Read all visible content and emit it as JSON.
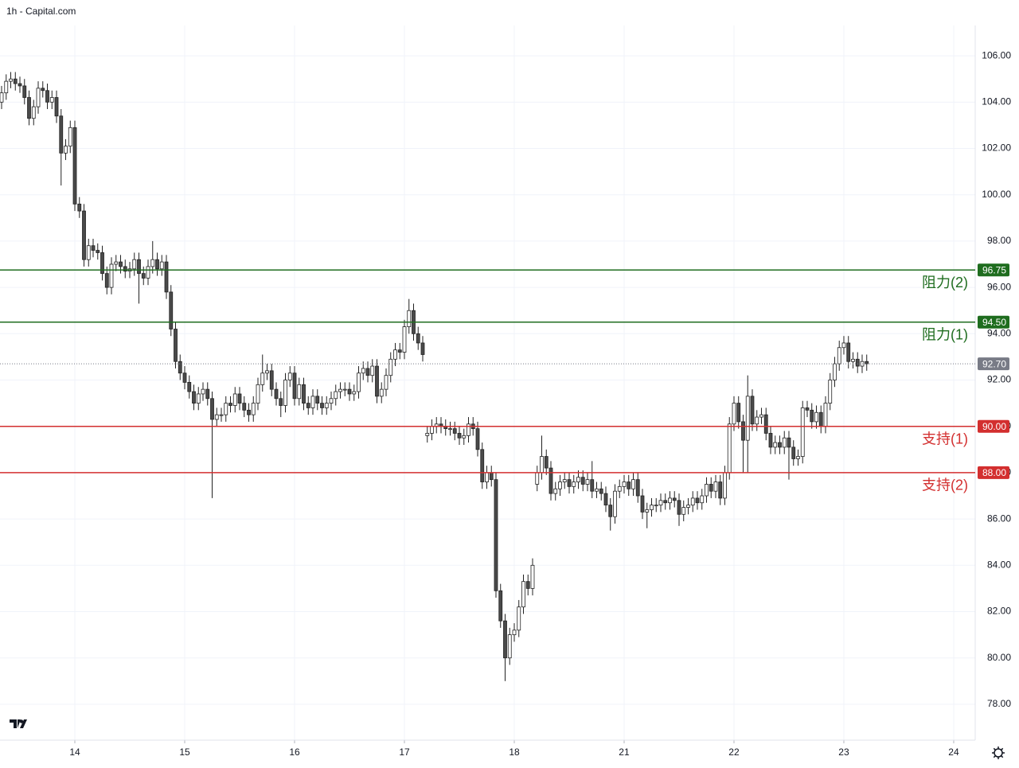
{
  "chart_data": {
    "type": "candlestick",
    "title": "1h - Capital.com",
    "x": [
      0,
      1,
      2,
      3,
      4,
      5,
      6,
      7,
      8,
      9,
      10,
      11,
      12,
      13,
      14,
      15,
      16,
      17,
      18,
      19,
      20,
      21,
      22,
      23,
      24,
      25,
      26,
      27,
      28,
      29,
      30,
      31,
      32,
      33,
      34,
      35,
      36,
      37,
      38,
      39,
      40,
      41,
      42,
      43,
      44,
      45,
      46,
      47,
      48,
      49,
      50,
      51,
      52,
      53,
      54,
      55,
      56,
      57,
      58,
      59,
      60,
      61,
      62,
      63,
      64,
      65,
      66,
      67,
      68,
      69,
      70,
      71,
      72,
      73,
      74,
      75,
      76,
      77,
      78,
      79,
      80,
      81,
      82,
      83,
      84,
      85,
      86,
      87,
      88,
      89,
      90,
      91,
      92,
      93,
      94,
      95,
      96,
      97,
      98,
      99,
      100,
      101,
      102,
      103,
      104,
      105,
      106,
      107,
      108,
      109,
      110,
      111,
      112,
      113,
      114,
      115,
      116,
      117,
      118,
      119,
      120,
      121,
      122,
      123,
      124,
      125,
      126,
      127,
      128,
      129,
      130,
      131,
      132,
      133,
      134,
      135,
      136,
      137,
      138,
      139,
      140,
      141,
      142,
      143,
      144,
      145,
      146,
      147,
      148,
      149,
      150,
      151,
      152,
      153,
      154,
      155,
      156,
      157,
      158,
      159,
      160,
      161,
      162,
      163,
      164,
      165,
      166,
      167,
      168,
      169,
      170,
      171,
      172,
      173,
      174,
      175,
      176,
      177,
      178,
      179,
      180,
      181,
      182,
      183,
      184,
      185,
      186,
      187,
      188,
      189
    ],
    "open": [
      104.0,
      104.4,
      104.9,
      105.0,
      104.8,
      104.7,
      104.2,
      103.3,
      103.8,
      104.6,
      104.5,
      104.0,
      104.2,
      103.4,
      101.8,
      102.1,
      102.9,
      99.6,
      99.3,
      97.2,
      97.8,
      97.6,
      97.5,
      96.6,
      96.0,
      97.0,
      97.1,
      96.9,
      96.7,
      96.8,
      97.2,
      96.6,
      96.4,
      96.9,
      97.2,
      96.8,
      97.1,
      95.8,
      94.2,
      92.8,
      92.3,
      91.9,
      91.5,
      91.0,
      91.4,
      91.6,
      91.2,
      90.3,
      90.5,
      90.5,
      91.0,
      90.9,
      91.4,
      91.0,
      90.7,
      90.5,
      91.0,
      91.8,
      92.3,
      92.4,
      91.6,
      91.2,
      90.9,
      92.0,
      92.3,
      91.2,
      91.8,
      91.0,
      90.8,
      91.3,
      91.0,
      90.8,
      91.0,
      91.2,
      91.5,
      91.6,
      91.6,
      91.4,
      91.5,
      92.3,
      92.5,
      92.2,
      92.6,
      91.3,
      91.6,
      92.2,
      92.9,
      93.3,
      93.2,
      94.3,
      95.0,
      94.0,
      93.6,
      89.6,
      89.7,
      90.0,
      90.1,
      90.0,
      89.9,
      89.9,
      89.7,
      89.5,
      89.6,
      90.1,
      89.9,
      89.0,
      87.6,
      88.0,
      87.7,
      82.9,
      81.6,
      80.0,
      81.0,
      81.2,
      82.2,
      83.3,
      83.0,
      87.5,
      88.0,
      88.7,
      88.2,
      87.1,
      87.3,
      87.6,
      87.7,
      87.4,
      87.6,
      87.8,
      87.5,
      87.7,
      87.2,
      87.3,
      87.1,
      86.6,
      86.1,
      87.2,
      87.4,
      87.6,
      87.3,
      87.7,
      87.0,
      86.3,
      86.4,
      86.6,
      86.6,
      86.8,
      86.7,
      86.9,
      86.8,
      86.2,
      86.5,
      86.6,
      86.9,
      86.7,
      87.0,
      87.5,
      87.2,
      87.6,
      86.9,
      88.0,
      90.1,
      91.0,
      90.2,
      89.4,
      91.3,
      90.1,
      90.4,
      90.5,
      89.7,
      89.1,
      89.3,
      89.1,
      89.5,
      89.1,
      88.6,
      88.7,
      90.8,
      90.7,
      90.2,
      90.6,
      90.0,
      91.0,
      92.0,
      92.7,
      93.4,
      93.6,
      92.8,
      92.9,
      92.6,
      92.8
    ],
    "high": [
      104.7,
      105.2,
      105.3,
      105.3,
      105.1,
      105.0,
      104.5,
      104.1,
      104.9,
      104.9,
      104.8,
      104.5,
      104.5,
      103.7,
      102.4,
      103.2,
      103.2,
      99.9,
      99.6,
      98.1,
      98.1,
      97.9,
      97.8,
      96.9,
      97.3,
      97.4,
      97.4,
      97.2,
      97.1,
      97.5,
      97.5,
      96.9,
      97.2,
      98.0,
      97.5,
      97.4,
      97.4,
      96.1,
      94.5,
      93.1,
      92.6,
      92.2,
      91.8,
      91.7,
      91.9,
      91.9,
      91.5,
      90.8,
      90.8,
      91.3,
      91.3,
      91.7,
      91.7,
      91.3,
      91.0,
      91.3,
      92.1,
      93.1,
      92.7,
      92.7,
      91.9,
      91.5,
      92.3,
      92.6,
      92.6,
      92.1,
      92.1,
      91.3,
      91.6,
      91.6,
      91.3,
      91.3,
      91.5,
      91.8,
      91.9,
      91.9,
      91.9,
      91.8,
      92.6,
      92.8,
      92.8,
      92.9,
      92.9,
      91.9,
      92.5,
      93.2,
      93.6,
      93.6,
      94.6,
      95.5,
      95.3,
      94.3,
      93.9,
      90.0,
      90.3,
      90.4,
      90.4,
      90.3,
      90.2,
      90.2,
      90.0,
      89.9,
      90.4,
      90.4,
      90.2,
      89.3,
      88.3,
      88.3,
      88.0,
      83.2,
      81.9,
      81.3,
      81.5,
      82.5,
      83.6,
      83.6,
      84.3,
      88.3,
      89.6,
      89.0,
      88.5,
      87.6,
      87.9,
      88.0,
      88.0,
      87.9,
      88.1,
      88.1,
      88.0,
      88.5,
      87.6,
      87.6,
      87.4,
      86.9,
      87.5,
      87.7,
      87.9,
      87.9,
      88.0,
      88.0,
      87.3,
      86.7,
      86.9,
      86.9,
      87.1,
      87.1,
      87.2,
      87.2,
      87.1,
      86.8,
      86.9,
      87.2,
      87.2,
      87.3,
      87.8,
      87.8,
      87.9,
      87.9,
      88.3,
      90.4,
      91.3,
      91.3,
      90.5,
      92.2,
      91.6,
      90.7,
      90.8,
      90.8,
      90.0,
      89.6,
      89.6,
      89.8,
      89.8,
      89.4,
      89.0,
      91.1,
      91.1,
      91.0,
      90.9,
      90.9,
      91.3,
      92.3,
      93.0,
      93.7,
      93.9,
      93.9,
      93.2,
      93.2,
      93.1,
      93.1
    ],
    "low": [
      103.7,
      104.1,
      104.6,
      104.5,
      104.4,
      103.9,
      103.0,
      103.0,
      103.5,
      104.2,
      103.7,
      103.7,
      103.1,
      100.4,
      101.5,
      101.8,
      99.3,
      99.0,
      96.9,
      96.9,
      97.3,
      97.2,
      96.3,
      95.7,
      95.7,
      96.7,
      96.6,
      96.4,
      96.4,
      96.5,
      95.3,
      96.1,
      96.1,
      96.6,
      96.5,
      96.5,
      95.5,
      93.9,
      92.5,
      92.0,
      91.6,
      91.2,
      90.7,
      90.7,
      91.1,
      90.9,
      86.9,
      90.0,
      90.2,
      90.2,
      90.6,
      90.6,
      90.7,
      90.4,
      90.2,
      90.2,
      90.7,
      91.5,
      92.0,
      91.3,
      90.9,
      90.4,
      90.6,
      91.7,
      90.9,
      90.9,
      90.7,
      90.5,
      90.5,
      90.7,
      90.5,
      90.5,
      90.7,
      90.9,
      91.2,
      91.3,
      91.1,
      91.1,
      91.2,
      92.0,
      91.9,
      91.9,
      91.0,
      91.0,
      91.3,
      91.9,
      92.6,
      92.9,
      92.9,
      94.0,
      93.7,
      93.3,
      92.8,
      89.3,
      89.4,
      89.7,
      89.7,
      89.6,
      89.6,
      89.4,
      89.2,
      89.2,
      89.3,
      89.6,
      88.7,
      87.3,
      87.3,
      87.4,
      82.6,
      81.3,
      79.0,
      79.7,
      80.7,
      80.9,
      81.9,
      82.7,
      82.7,
      87.2,
      87.7,
      87.9,
      86.8,
      86.8,
      87.0,
      87.3,
      87.1,
      87.1,
      87.3,
      87.2,
      87.2,
      86.9,
      86.9,
      86.8,
      86.3,
      85.5,
      85.8,
      86.9,
      87.1,
      87.0,
      87.0,
      86.7,
      86.0,
      85.6,
      86.1,
      86.3,
      86.3,
      86.4,
      86.4,
      86.5,
      85.7,
      85.9,
      86.2,
      86.3,
      86.4,
      86.4,
      86.7,
      86.9,
      86.9,
      86.6,
      86.6,
      87.7,
      89.8,
      89.9,
      88.0,
      88.0,
      89.8,
      89.8,
      90.1,
      89.4,
      88.8,
      88.8,
      88.8,
      88.8,
      87.7,
      88.3,
      88.3,
      88.4,
      90.4,
      89.9,
      89.9,
      89.7,
      89.7,
      90.7,
      91.7,
      92.4,
      93.1,
      92.5,
      92.5,
      92.3,
      92.3,
      92.4
    ],
    "close": [
      104.4,
      104.9,
      105.0,
      104.8,
      104.7,
      104.2,
      103.3,
      103.8,
      104.6,
      104.5,
      104.0,
      104.2,
      103.4,
      101.8,
      102.1,
      102.9,
      99.6,
      99.3,
      97.2,
      97.8,
      97.6,
      97.5,
      96.6,
      96.0,
      97.0,
      97.1,
      96.9,
      96.7,
      96.8,
      97.2,
      96.6,
      96.4,
      96.9,
      97.2,
      96.8,
      97.1,
      95.8,
      94.2,
      92.8,
      92.3,
      91.9,
      91.5,
      91.0,
      91.4,
      91.6,
      91.2,
      90.3,
      90.5,
      90.5,
      91.0,
      90.9,
      91.4,
      91.0,
      90.7,
      90.5,
      91.0,
      91.8,
      92.3,
      92.4,
      91.6,
      91.2,
      90.9,
      92.0,
      92.3,
      91.2,
      91.8,
      91.0,
      90.8,
      91.3,
      91.0,
      90.8,
      91.0,
      91.2,
      91.5,
      91.6,
      91.6,
      91.4,
      91.5,
      92.3,
      92.5,
      92.2,
      92.6,
      91.3,
      91.6,
      92.2,
      92.9,
      93.3,
      93.2,
      94.3,
      95.0,
      94.0,
      93.6,
      93.1,
      89.7,
      90.0,
      90.1,
      90.0,
      89.9,
      89.9,
      89.7,
      89.5,
      89.6,
      90.1,
      89.9,
      89.0,
      87.6,
      88.0,
      87.7,
      82.9,
      81.6,
      80.0,
      81.0,
      81.2,
      82.2,
      83.3,
      83.0,
      84.0,
      88.0,
      88.7,
      88.2,
      87.1,
      87.3,
      87.6,
      87.7,
      87.4,
      87.6,
      87.8,
      87.5,
      87.7,
      87.2,
      87.3,
      87.1,
      86.6,
      86.1,
      87.2,
      87.4,
      87.6,
      87.3,
      87.7,
      87.0,
      86.3,
      86.4,
      86.6,
      86.6,
      86.8,
      86.7,
      86.9,
      86.8,
      86.2,
      86.5,
      86.6,
      86.9,
      86.7,
      87.0,
      87.5,
      87.2,
      87.6,
      86.9,
      88.0,
      90.1,
      91.0,
      90.2,
      89.4,
      91.3,
      90.1,
      90.4,
      90.5,
      89.7,
      89.1,
      89.3,
      89.1,
      89.5,
      89.1,
      88.6,
      88.7,
      90.8,
      90.7,
      90.2,
      90.6,
      90.0,
      91.0,
      92.0,
      92.7,
      93.4,
      93.6,
      92.8,
      92.9,
      92.6,
      92.8,
      92.7
    ],
    "up_color": "#ffffff",
    "down_color": "#4a4a4a",
    "wick_color": "#222222",
    "xlim": [
      -0.35,
      212.7
    ],
    "xticks": [
      {
        "value": 16,
        "label": "14"
      },
      {
        "value": 40,
        "label": "15"
      },
      {
        "value": 64,
        "label": "16"
      },
      {
        "value": 88,
        "label": "17"
      },
      {
        "value": 112,
        "label": "18"
      },
      {
        "value": 136,
        "label": "21"
      },
      {
        "value": 160,
        "label": "22"
      },
      {
        "value": 184,
        "label": "23"
      },
      {
        "value": 208,
        "label": "24"
      }
    ],
    "ylim": [
      76.45,
      107.31
    ],
    "yticks": [
      {
        "value": 78,
        "label": "78.00"
      },
      {
        "value": 80,
        "label": "80.00"
      },
      {
        "value": 82,
        "label": "82.00"
      },
      {
        "value": 84,
        "label": "84.00"
      },
      {
        "value": 86,
        "label": "86.00"
      },
      {
        "value": 88,
        "label": "88.00"
      },
      {
        "value": 90,
        "label": "90.00"
      },
      {
        "value": 92,
        "label": "92.00"
      },
      {
        "value": 94,
        "label": "94.00"
      },
      {
        "value": 96,
        "label": "96.00"
      },
      {
        "value": 98,
        "label": "98.00"
      },
      {
        "value": 100,
        "label": "100.00"
      },
      {
        "value": 102,
        "label": "102.00"
      },
      {
        "value": 104,
        "label": "104.00"
      },
      {
        "value": 106,
        "label": "106.00"
      }
    ],
    "grid": true,
    "levels": [
      {
        "name": "阻力(2)",
        "value": 96.75,
        "label": "96.75",
        "color": "#1f6d1f"
      },
      {
        "name": "阻力(1)",
        "value": 94.5,
        "label": "94.50",
        "color": "#1f6d1f"
      },
      {
        "name": "支持(1)",
        "value": 90,
        "label": "90.00",
        "color": "#d32f2f"
      },
      {
        "name": "支持(2)",
        "value": 88,
        "label": "88.00",
        "color": "#d32f2f"
      }
    ],
    "last_price": {
      "value": 92.7,
      "label": "92.70",
      "color": "#787b86"
    }
  }
}
